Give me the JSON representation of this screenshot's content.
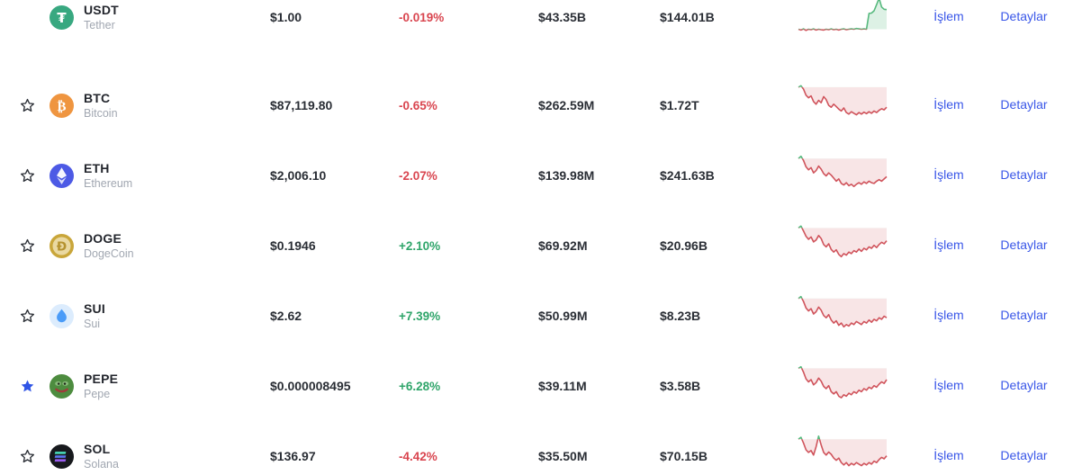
{
  "table": {
    "links": {
      "trade": "İşlem",
      "details": "Detaylar"
    },
    "colors": {
      "up": "#2fa56a",
      "down": "#d9454f",
      "link": "#3a57e8",
      "spark_up_line": "#57b97e",
      "spark_up_fill": "rgba(87,185,126,0.20)",
      "spark_down_line": "#d0545c",
      "spark_down_fill": "rgba(214,92,100,0.16)",
      "star_filled": "#2f55e6",
      "star_outline": "#2b2f36",
      "text_dark": "#23262d",
      "text_gray": "#a1a7b1"
    },
    "rows": [
      {
        "symbol": "USDT",
        "name": "Tether",
        "icon": "tether-coin-icon",
        "icon_bg": "#38a880",
        "star": "none",
        "price": "$1.00",
        "change": "-0.019%",
        "change_dir": "down",
        "volume": "$43.35B",
        "market_cap": "$144.01B",
        "spark": [
          0.13,
          0.11,
          0.14,
          0.1,
          0.13,
          0.12,
          0.14,
          0.11,
          0.13,
          0.12,
          0.11,
          0.13,
          0.12,
          0.14,
          0.12,
          0.13,
          0.11,
          0.13,
          0.14,
          0.12,
          0.13,
          0.14,
          0.13,
          0.15,
          0.14,
          0.13,
          0.14,
          0.13,
          0.55,
          0.56,
          0.62,
          0.78,
          0.95,
          0.72,
          0.66,
          0.65
        ]
      },
      {
        "symbol": "BTC",
        "name": "Bitcoin",
        "icon": "bitcoin-coin-icon",
        "icon_bg": "#ef9540",
        "star": "outline",
        "price": "$87,119.80",
        "change": "-0.65%",
        "change_dir": "down",
        "volume": "$262.59M",
        "market_cap": "$1.72T",
        "spark": [
          0.93,
          0.97,
          0.88,
          0.72,
          0.65,
          0.7,
          0.55,
          0.48,
          0.58,
          0.52,
          0.68,
          0.6,
          0.45,
          0.4,
          0.48,
          0.42,
          0.35,
          0.3,
          0.38,
          0.26,
          0.22,
          0.28,
          0.24,
          0.2,
          0.26,
          0.22,
          0.27,
          0.23,
          0.28,
          0.24,
          0.3,
          0.26,
          0.32,
          0.36,
          0.33,
          0.4
        ]
      },
      {
        "symbol": "ETH",
        "name": "Ethereum",
        "icon": "ethereum-coin-icon",
        "icon_bg": "#4d5ae5",
        "star": "outline",
        "price": "$2,006.10",
        "change": "-2.07%",
        "change_dir": "down",
        "volume": "$139.98M",
        "market_cap": "$241.63B",
        "spark": [
          0.9,
          0.96,
          0.85,
          0.68,
          0.6,
          0.66,
          0.52,
          0.58,
          0.7,
          0.62,
          0.5,
          0.44,
          0.52,
          0.46,
          0.38,
          0.3,
          0.36,
          0.24,
          0.2,
          0.26,
          0.18,
          0.22,
          0.16,
          0.22,
          0.26,
          0.22,
          0.28,
          0.24,
          0.3,
          0.26,
          0.24,
          0.3,
          0.34,
          0.3,
          0.36,
          0.42
        ]
      },
      {
        "symbol": "DOGE",
        "name": "DogeCoin",
        "icon": "dogecoin-coin-icon",
        "icon_bg": "#c9a63a",
        "star": "outline",
        "price": "$0.1946",
        "change": "+2.10%",
        "change_dir": "up",
        "volume": "$69.92M",
        "market_cap": "$20.96B",
        "spark": [
          0.92,
          0.97,
          0.84,
          0.7,
          0.62,
          0.68,
          0.55,
          0.6,
          0.72,
          0.64,
          0.48,
          0.42,
          0.5,
          0.35,
          0.28,
          0.34,
          0.22,
          0.16,
          0.24,
          0.2,
          0.28,
          0.24,
          0.32,
          0.28,
          0.36,
          0.3,
          0.38,
          0.34,
          0.42,
          0.38,
          0.46,
          0.4,
          0.48,
          0.54,
          0.5,
          0.58
        ]
      },
      {
        "symbol": "SUI",
        "name": "Sui",
        "icon": "sui-coin-icon",
        "icon_bg": "#dcecfd",
        "star": "outline",
        "price": "$2.62",
        "change": "+7.39%",
        "change_dir": "up",
        "volume": "$50.99M",
        "market_cap": "$8.23B",
        "spark": [
          0.91,
          0.96,
          0.83,
          0.66,
          0.58,
          0.64,
          0.5,
          0.56,
          0.68,
          0.6,
          0.46,
          0.4,
          0.48,
          0.34,
          0.26,
          0.32,
          0.2,
          0.26,
          0.16,
          0.22,
          0.18,
          0.26,
          0.22,
          0.3,
          0.26,
          0.22,
          0.3,
          0.26,
          0.34,
          0.28,
          0.36,
          0.32,
          0.4,
          0.36,
          0.44,
          0.4
        ]
      },
      {
        "symbol": "PEPE",
        "name": "Pepe",
        "icon": "pepe-coin-icon",
        "icon_bg": "#4d8c3f",
        "star": "filled",
        "price": "$0.000008495",
        "change": "+6.28%",
        "change_dir": "up",
        "volume": "$39.11M",
        "market_cap": "$3.58B",
        "spark": [
          0.92,
          0.96,
          0.82,
          0.64,
          0.56,
          0.62,
          0.48,
          0.54,
          0.66,
          0.58,
          0.44,
          0.38,
          0.46,
          0.3,
          0.24,
          0.3,
          0.18,
          0.14,
          0.22,
          0.18,
          0.26,
          0.22,
          0.3,
          0.26,
          0.34,
          0.3,
          0.38,
          0.34,
          0.42,
          0.38,
          0.46,
          0.42,
          0.5,
          0.56,
          0.52,
          0.62
        ]
      },
      {
        "symbol": "SOL",
        "name": "Solana",
        "icon": "solana-coin-icon",
        "icon_bg": "#17191d",
        "star": "outline",
        "price": "$136.97",
        "change": "-4.42%",
        "change_dir": "down",
        "volume": "$35.50M",
        "market_cap": "$70.15B",
        "spark": [
          0.9,
          0.95,
          0.8,
          0.62,
          0.55,
          0.6,
          0.48,
          0.7,
          0.98,
          0.75,
          0.55,
          0.48,
          0.56,
          0.5,
          0.4,
          0.34,
          0.4,
          0.28,
          0.22,
          0.28,
          0.2,
          0.26,
          0.22,
          0.28,
          0.24,
          0.2,
          0.26,
          0.22,
          0.28,
          0.24,
          0.32,
          0.28,
          0.36,
          0.42,
          0.38,
          0.46
        ]
      }
    ]
  }
}
